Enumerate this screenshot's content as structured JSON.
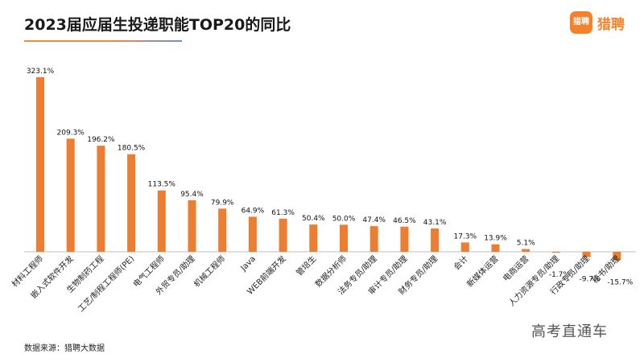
{
  "header": {
    "title": "2023届应届生投递职能TOP20的同比",
    "logo_text": "猎聘",
    "logo_mark": "猎聘"
  },
  "footer": {
    "source": "数据来源：猎聘大数据",
    "watermark": "高考直通车"
  },
  "colors": {
    "bar": "#ed7d31",
    "axis": "#bfbfbf",
    "accent": "#f5822a"
  },
  "chart_data": {
    "type": "bar",
    "title": "2023届应届生投递职能TOP20的同比",
    "categories": [
      "材料工程师",
      "嵌入式软件开发",
      "生物制药工程",
      "工艺/制程工程师(PE)",
      "电气工程师",
      "外贸专员/助理",
      "机械工程师",
      "Java",
      "WEB前端开发",
      "管培生",
      "数据分析师",
      "法务专员/助理",
      "审计专员/助理",
      "财务专员/助理",
      "会计",
      "新媒体运营",
      "电商运营",
      "人力资源专员/助理",
      "行政专员/助理",
      "秘书/助理"
    ],
    "values": [
      323.1,
      209.3,
      196.2,
      180.5,
      113.5,
      95.4,
      79.9,
      64.9,
      61.3,
      50.4,
      50.0,
      47.4,
      46.5,
      43.1,
      17.3,
      13.9,
      5.1,
      -1.7,
      -9.7,
      -15.7
    ],
    "value_labels": [
      "323.1%",
      "209.3%",
      "196.2%",
      "180.5%",
      "113.5%",
      "95.4%",
      "79.9%",
      "64.9%",
      "61.3%",
      "50.4%",
      "50.0%",
      "47.4%",
      "46.5%",
      "43.1%",
      "17.3%",
      "13.9%",
      "5.1%",
      "-1.7%",
      "-9.7%",
      "-15.7%"
    ],
    "unit": "%",
    "grid": false,
    "legend": "none"
  }
}
